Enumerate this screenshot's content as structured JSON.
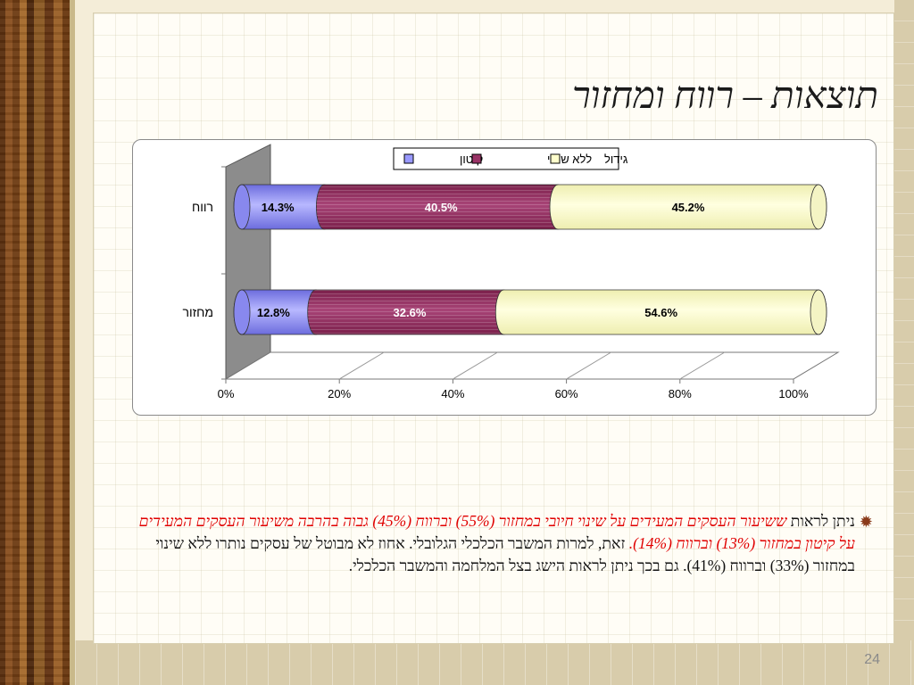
{
  "slide": {
    "title": "תוצאות – רווח ומחזור",
    "page_number": "24",
    "bullet_icon": "sunburst-bullet-icon",
    "paragraph": [
      {
        "text": "ניתן לראות ",
        "style": "normal"
      },
      {
        "text": "ששיעור העסקים המעידים על שינוי חיובי במחזור (55%) וברווח (45%) גבוה בהרבה משיעור העסקים המעידים על קיטון במחזור (13%) וברווח (14%).",
        "style": "red"
      },
      {
        "text": " זאת, למרות המשבר הכלכלי הגלובלי. אחוז לא מבוטל של עסקים נותרו ללא שינוי במחזור (33%) וברווח (41%). גם בכך ניתן לראות הישג בצל המלחמה והמשבר הכלכלי.",
        "style": "normal"
      }
    ]
  },
  "chart_data": {
    "type": "bar",
    "orientation": "horizontal",
    "stacked": "percent",
    "categories": [
      "רווח",
      "מחזור"
    ],
    "series": [
      {
        "name": "קיטון",
        "values": [
          14.3,
          12.8
        ],
        "labels": [
          "14.3%",
          "12.8%"
        ],
        "color": "#9999ff"
      },
      {
        "name": "ללא שינוי",
        "values": [
          40.5,
          32.6
        ],
        "labels": [
          "40.5%",
          "32.6%"
        ],
        "color": "#993366"
      },
      {
        "name": "גידול",
        "values": [
          45.2,
          54.6
        ],
        "labels": [
          "45.2%",
          "54.6%"
        ],
        "color": "#ffffcc"
      }
    ],
    "x_ticks": [
      "0%",
      "20%",
      "40%",
      "60%",
      "80%",
      "100%"
    ],
    "xlim": [
      0,
      100
    ],
    "legend_position": "top",
    "grid": true
  }
}
